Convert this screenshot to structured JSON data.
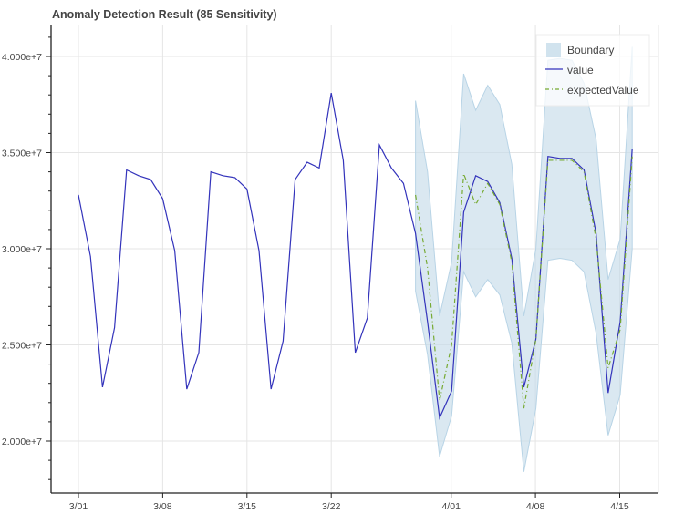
{
  "chart_data": {
    "type": "line",
    "title": "Anomaly Detection Result (85 Sensitivity)",
    "xlabel": "",
    "ylabel": "",
    "ylim": [
      17000000,
      42500000
    ],
    "grid": true,
    "legend_position": "top-right",
    "x_tick_labels": [
      "3/01",
      "3/08",
      "3/15",
      "3/22",
      "4/01",
      "4/08",
      "4/15"
    ],
    "y_tick_labels": [
      "2.000e+7",
      "2.500e+7",
      "3.000e+7",
      "3.500e+7",
      "4.000e+7"
    ],
    "y_tick_values": [
      20000000,
      25000000,
      30000000,
      35000000,
      40000000
    ],
    "legend": [
      "Boundary",
      "value",
      "expectedValue"
    ],
    "x": [
      "3/01",
      "3/02",
      "3/03",
      "3/04",
      "3/05",
      "3/06",
      "3/07",
      "3/08",
      "3/09",
      "3/10",
      "3/11",
      "3/12",
      "3/13",
      "3/14",
      "3/15",
      "3/16",
      "3/17",
      "3/18",
      "3/19",
      "3/20",
      "3/21",
      "3/22",
      "3/23",
      "3/24",
      "3/25",
      "3/26",
      "3/27",
      "3/28",
      "3/29",
      "3/30",
      "3/31",
      "4/01",
      "4/02",
      "4/03",
      "4/04",
      "4/05",
      "4/06",
      "4/07",
      "4/08",
      "4/09",
      "4/10",
      "4/11",
      "4/12",
      "4/13",
      "4/14",
      "4/15",
      "4/16"
    ],
    "series": [
      {
        "name": "value",
        "color": "#3333bb",
        "values": [
          32800000,
          29600000,
          22800000,
          25900000,
          34100000,
          33800000,
          33600000,
          32600000,
          29900000,
          22700000,
          24600000,
          34000000,
          33800000,
          33700000,
          33100000,
          29900000,
          22700000,
          25200000,
          33600000,
          34500000,
          34200000,
          38100000,
          34600000,
          24600000,
          26400000,
          35400000,
          34200000,
          33400000,
          30800000,
          26200000,
          21200000,
          22600000,
          31900000,
          33800000,
          33500000,
          32400000,
          29500000,
          22800000,
          25300000,
          34800000,
          34700000,
          34700000,
          34100000,
          30800000,
          22500000,
          26200000,
          35200000
        ]
      },
      {
        "name": "expectedValue",
        "color": "#77aa33",
        "start_index": 28,
        "values": [
          32800000,
          29000000,
          22100000,
          25000000,
          33900000,
          32300000,
          33400000,
          32300000,
          29300000,
          21700000,
          25300000,
          34600000,
          34600000,
          34600000,
          34000000,
          30500000,
          23800000,
          25800000,
          34800000
        ]
      }
    ],
    "boundary": {
      "name": "Boundary",
      "color": "#c6dcea",
      "start_index": 28,
      "upper": [
        37700000,
        34000000,
        26500000,
        29300000,
        39100000,
        37200000,
        38500000,
        37500000,
        34400000,
        26500000,
        30000000,
        39800000,
        39900000,
        39800000,
        38600000,
        35700000,
        28400000,
        30500000,
        40500000
      ],
      "lower": [
        27800000,
        24500000,
        19200000,
        21300000,
        28800000,
        27500000,
        28400000,
        27600000,
        25100000,
        18400000,
        21700000,
        29400000,
        29500000,
        29400000,
        28800000,
        25600000,
        20300000,
        22400000,
        30000000
      ]
    }
  }
}
